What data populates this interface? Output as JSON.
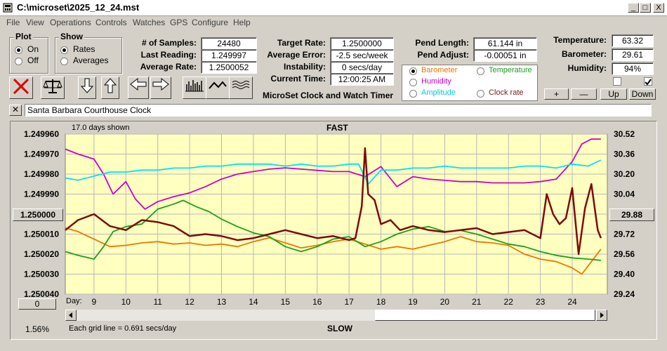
{
  "window": {
    "title": "C:\\microset\\2025_12_24.mst",
    "minimize": "_",
    "maximize": "□",
    "close": "X"
  },
  "menu": [
    "File",
    "View",
    "Operations",
    "Controls",
    "Watches",
    "GPS",
    "Configure",
    "Help"
  ],
  "plot_group": {
    "label": "Plot",
    "options": [
      "On",
      "Off"
    ],
    "selected": "On"
  },
  "show_group": {
    "label": "Show",
    "options": [
      "Rates",
      "Averages"
    ],
    "selected": "Rates"
  },
  "stats": {
    "samples_label": "# of Samples:",
    "samples": "24480",
    "last_reading_label": "Last Reading:",
    "last_reading": "1.249997",
    "average_rate_label": "Average Rate:",
    "average_rate": "1.2500052",
    "target_rate_label": "Target Rate:",
    "target_rate": "1.2500000",
    "average_error_label": "Average Error:",
    "average_error": "-2.5 sec/week",
    "instability_label": "Instability:",
    "instability": "0 secs/day",
    "current_time_label": "Current Time:",
    "current_time": "12:00:25 AM",
    "pend_length_label": "Pend Length:",
    "pend_length": "61.144 in",
    "pend_adjust_label": "Pend Adjust:",
    "pend_adjust": "-0.00051 in",
    "temperature_label": "Temperature:",
    "temperature": "63.32",
    "barometer_label": "Barometer:",
    "barometer": "29.61",
    "humidity_label": "Humidity:",
    "humidity": "94%"
  },
  "app_caption": "MicroSet Clock and Watch Timer",
  "sensor_select": {
    "options": [
      {
        "label": "Barometer",
        "color": "#e87800",
        "selected": true
      },
      {
        "label": "Temperature",
        "color": "#1aa01a",
        "selected": false
      },
      {
        "label": "Humidity",
        "color": "#cc00cc",
        "selected": false
      },
      {
        "label": "Clock rate",
        "color": "#7a1a1a",
        "selected": false
      },
      {
        "label": "Amplitude",
        "color": "#00c8e0",
        "selected": false
      }
    ]
  },
  "checkboxes": [
    {
      "checked": false
    },
    {
      "checked": true
    }
  ],
  "scale_buttons": [
    "+",
    "—",
    "Up",
    "Down"
  ],
  "clock_name": "Santa Barbara Courthouse Clock",
  "close_name_button": "✕",
  "chart_labels": {
    "days_shown": "17.0 days shown",
    "top": "FAST",
    "bottom": "SLOW",
    "grid_note": "Each grid line = 0.691 secs/day",
    "percent": "1.56%",
    "left_center_button": "1.250000",
    "right_center_button": "29.88",
    "bottom_left_button": "0",
    "day_label": "Day:"
  },
  "chart_data": {
    "type": "line",
    "x_label": "Day:",
    "x_ticks": [
      "9",
      "10",
      "11",
      "12",
      "13",
      "14",
      "15",
      "16",
      "17",
      "18",
      "19",
      "20",
      "21",
      "22",
      "23",
      "24"
    ],
    "xlim": [
      8.1,
      25.1
    ],
    "y_left_ticks": [
      "1.249960",
      "1.249970",
      "1.249980",
      "1.249990",
      "1.250000",
      "1.250010",
      "1.250020",
      "1.250030",
      "1.250040"
    ],
    "y_left_range": [
      1.24996,
      1.25004
    ],
    "y_left_inverted": true,
    "y_right_ticks": [
      "30.52",
      "30.36",
      "30.20",
      "30.04",
      "29.88",
      "29.72",
      "29.56",
      "29.40",
      "29.24"
    ],
    "y_right_range": [
      29.24,
      30.52
    ],
    "grid": true,
    "series": [
      {
        "name": "Barometer",
        "color": "#e87800",
        "axis": "right",
        "x": [
          8.1,
          8.5,
          9,
          9.5,
          10,
          10.5,
          11,
          11.5,
          12,
          12.5,
          13,
          13.5,
          14,
          14.5,
          15,
          15.5,
          16,
          16.5,
          17,
          17.5,
          18,
          18.5,
          19,
          19.5,
          20,
          20.5,
          21,
          21.5,
          22,
          22.5,
          23,
          23.5,
          24,
          24.3,
          24.6,
          24.9
        ],
        "y": [
          29.77,
          29.74,
          29.68,
          29.62,
          29.63,
          29.65,
          29.66,
          29.64,
          29.65,
          29.63,
          29.64,
          29.62,
          29.66,
          29.69,
          29.65,
          29.61,
          29.63,
          29.66,
          29.68,
          29.64,
          29.6,
          29.62,
          29.6,
          29.63,
          29.66,
          29.7,
          29.66,
          29.65,
          29.63,
          29.56,
          29.52,
          29.5,
          29.45,
          29.4,
          29.5,
          29.6
        ]
      },
      {
        "name": "Temperature",
        "color": "#1aa01a",
        "axis": "right",
        "x": [
          8.1,
          8.5,
          9,
          9.3,
          9.6,
          10,
          10.5,
          11,
          11.5,
          11.8,
          12.2,
          12.6,
          13,
          13.5,
          14,
          14.5,
          15,
          15.5,
          16,
          16.5,
          17,
          17.5,
          18,
          18.5,
          19,
          19.5,
          20,
          20.5,
          21,
          21.5,
          22,
          22.5,
          23,
          23.5,
          24,
          24.5,
          24.9
        ],
        "y": [
          29.58,
          29.55,
          29.52,
          29.62,
          29.74,
          29.78,
          29.8,
          29.92,
          29.96,
          29.99,
          29.94,
          29.9,
          29.84,
          29.78,
          29.73,
          29.7,
          29.62,
          29.58,
          29.62,
          29.68,
          29.7,
          29.62,
          29.66,
          29.72,
          29.76,
          29.78,
          29.74,
          29.75,
          29.72,
          29.68,
          29.64,
          29.62,
          29.58,
          29.55,
          29.53,
          29.52,
          29.51
        ]
      },
      {
        "name": "Humidity",
        "color": "#cc00cc",
        "axis": "right",
        "x": [
          8.1,
          8.5,
          9,
          9.3,
          9.6,
          10,
          10.3,
          10.6,
          11,
          11.5,
          12,
          12.5,
          13,
          13.5,
          14,
          14.5,
          15,
          15.5,
          16,
          16.5,
          17,
          17.5,
          18,
          18.5,
          19,
          19.5,
          20,
          20.5,
          21,
          21.5,
          22,
          22.5,
          23,
          23.5,
          24,
          24.3,
          24.6,
          24.9
        ],
        "y": [
          30.4,
          30.36,
          30.32,
          30.2,
          30.04,
          30.14,
          30.0,
          29.92,
          29.98,
          30.02,
          30.05,
          30.1,
          30.16,
          30.2,
          30.22,
          30.24,
          30.25,
          30.24,
          30.23,
          30.22,
          30.22,
          30.18,
          30.26,
          30.1,
          30.18,
          30.16,
          30.15,
          30.14,
          30.14,
          30.13,
          30.13,
          30.13,
          30.14,
          30.16,
          30.3,
          30.44,
          30.48,
          30.48
        ]
      },
      {
        "name": "Amplitude",
        "color": "#00e0ff",
        "axis": "left",
        "x": [
          8.1,
          8.5,
          9,
          9.5,
          10,
          10.5,
          11,
          11.5,
          12,
          12.5,
          13,
          13.5,
          14,
          14.5,
          15,
          15.5,
          16,
          16.5,
          17,
          17.3,
          17.6,
          18,
          18.5,
          19,
          19.5,
          20,
          20.5,
          21,
          21.5,
          22,
          22.5,
          23,
          23.5,
          24,
          24.5,
          24.9
        ],
        "y": [
          1.249982,
          1.249983,
          1.249981,
          1.249979,
          1.249979,
          1.249978,
          1.249978,
          1.249977,
          1.249977,
          1.249976,
          1.249976,
          1.249975,
          1.249975,
          1.249975,
          1.249976,
          1.249975,
          1.249976,
          1.249976,
          1.249975,
          1.249975,
          1.249985,
          1.249978,
          1.249978,
          1.249977,
          1.249977,
          1.249976,
          1.249977,
          1.249977,
          1.249977,
          1.249977,
          1.249976,
          1.249976,
          1.249977,
          1.249975,
          1.249976,
          1.249973
        ]
      },
      {
        "name": "Clock rate",
        "color": "#7a0c0c",
        "axis": "left",
        "x": [
          8.1,
          8.5,
          9,
          9.5,
          10,
          10.5,
          11,
          11.5,
          12,
          12.5,
          13,
          13.5,
          14,
          14.5,
          15,
          15.5,
          16,
          16.5,
          17,
          17.2,
          17.4,
          17.5,
          17.6,
          17.8,
          18,
          18.3,
          18.6,
          19,
          19.5,
          20,
          20.5,
          21,
          21.5,
          22,
          22.5,
          23,
          23.2,
          23.4,
          23.6,
          23.8,
          24,
          24.2,
          24.4,
          24.6,
          24.8,
          24.9
        ],
        "y": [
          1.250008,
          1.250003,
          1.25,
          1.250006,
          1.250008,
          1.250003,
          1.250004,
          1.250006,
          1.250011,
          1.25001,
          1.250011,
          1.250013,
          1.250012,
          1.25001,
          1.250008,
          1.25001,
          1.250012,
          1.250011,
          1.250013,
          1.250012,
          1.249996,
          1.249967,
          1.24999,
          1.249993,
          1.250005,
          1.250003,
          1.250008,
          1.250006,
          1.250008,
          1.250009,
          1.250008,
          1.250007,
          1.25001,
          1.250009,
          1.250008,
          1.250012,
          1.24999,
          1.25,
          1.250005,
          1.250002,
          1.249987,
          1.25002,
          1.249997,
          1.249985,
          1.250008,
          1.250012
        ]
      }
    ]
  }
}
